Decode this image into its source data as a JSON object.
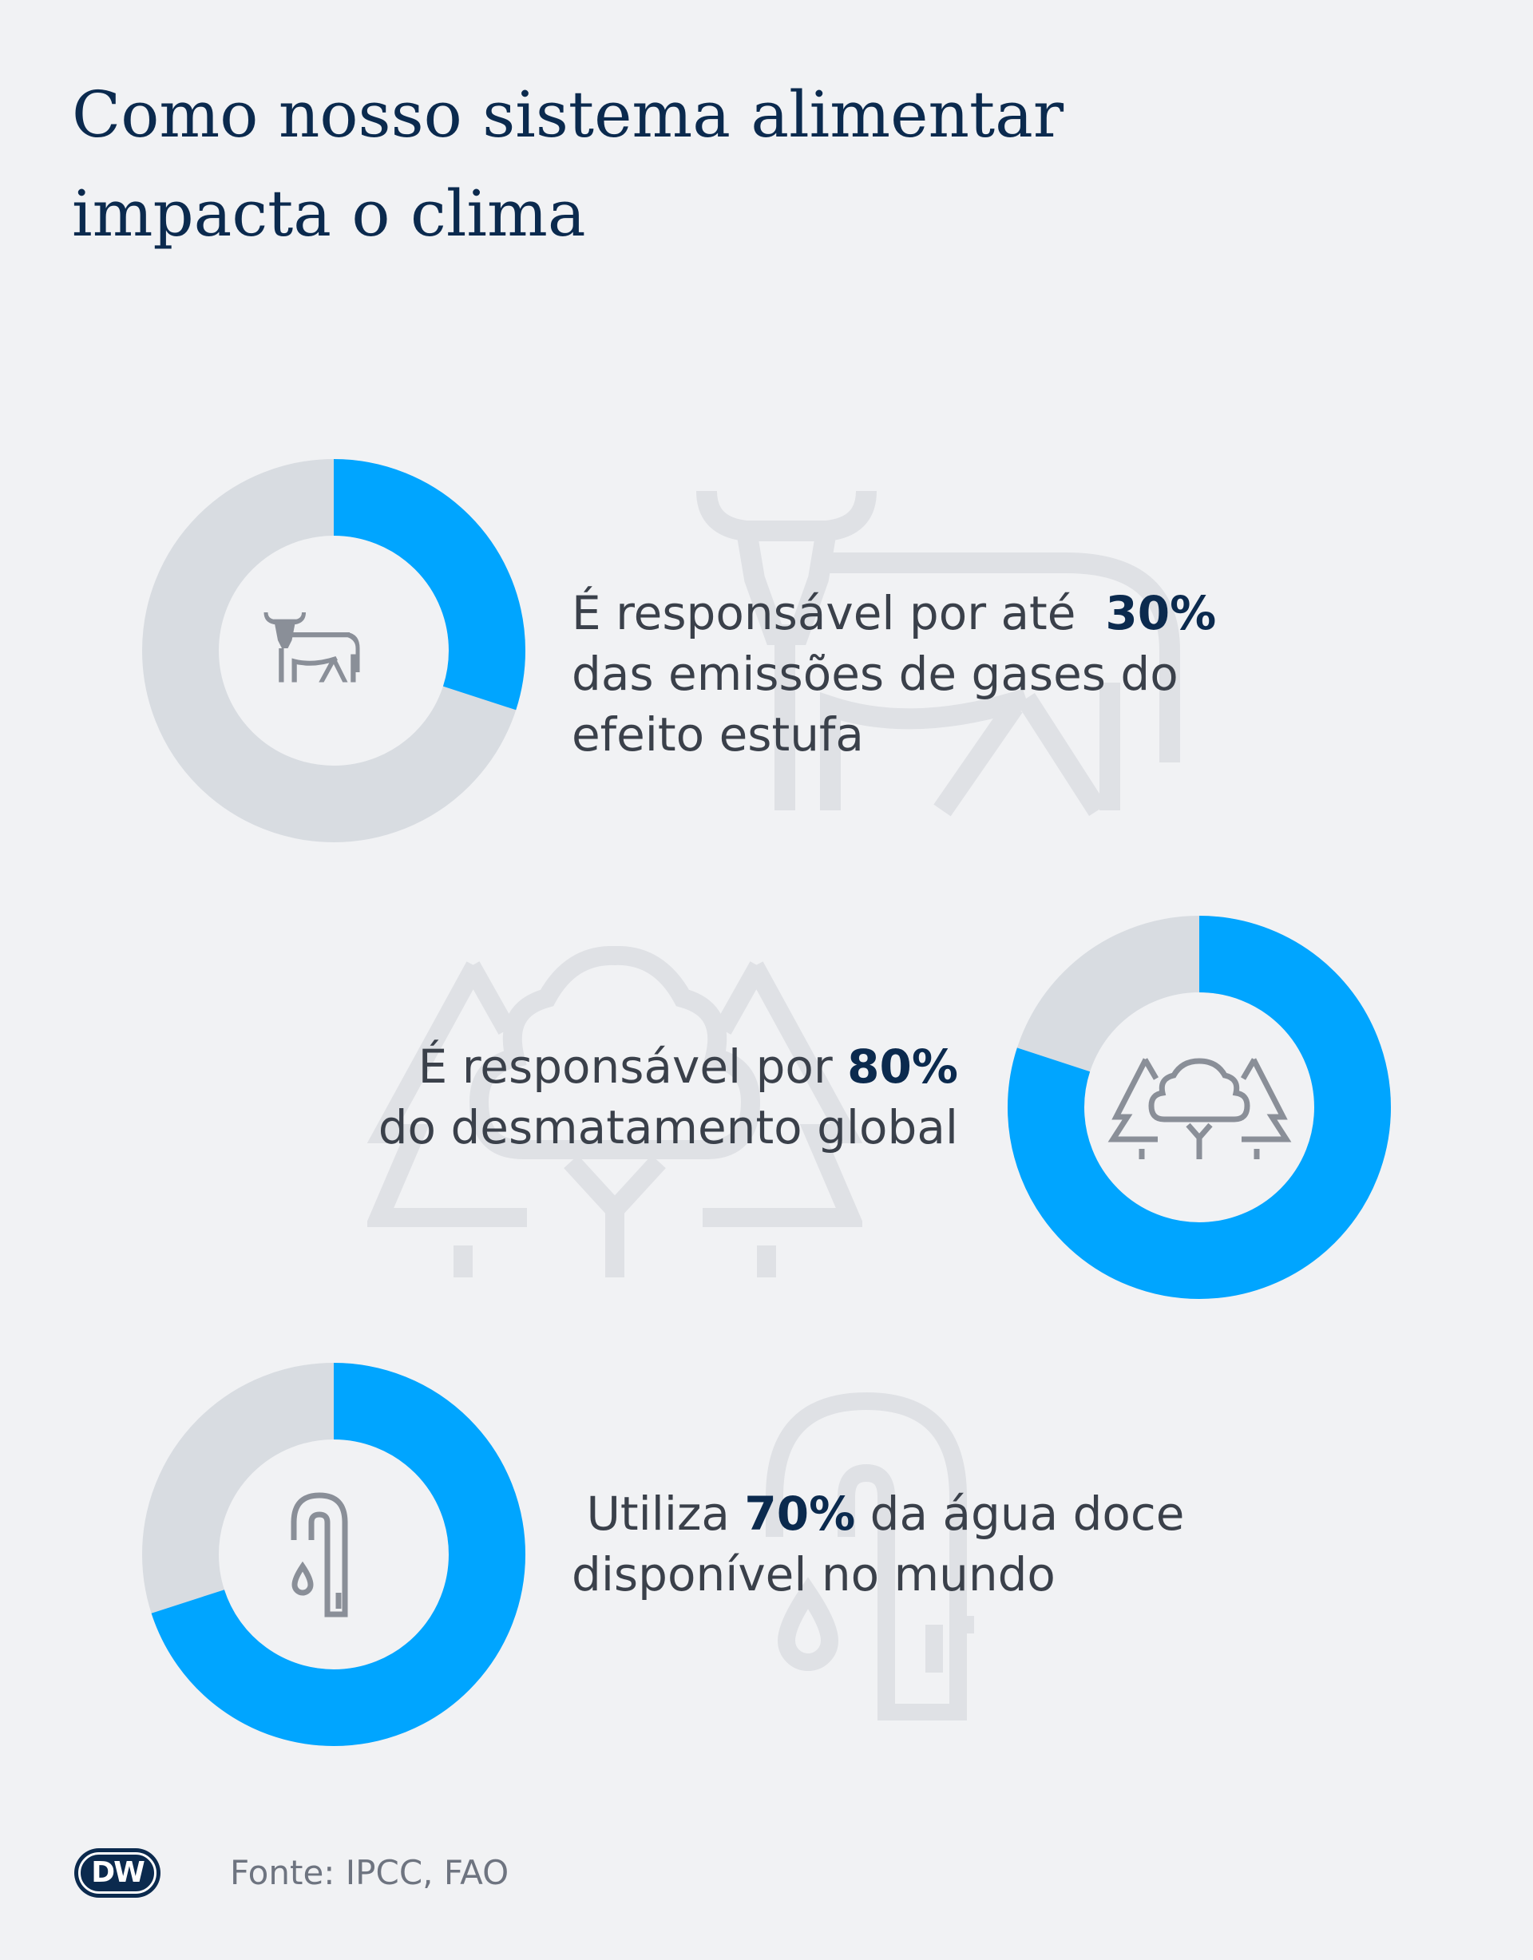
{
  "title": {
    "line1": "Como nosso sistema alimentar",
    "line2": "impacta o clima"
  },
  "colors": {
    "accent": "#00a5ff",
    "track": "#d8dce1",
    "text_dark": "#0b2a4e",
    "icon": "#8a8f98",
    "watermark": "#dfe1e5"
  },
  "chart_data": [
    {
      "type": "pie",
      "variant": "donut",
      "values": [
        30,
        70
      ],
      "highlight": "30%",
      "icon": "cow-icon",
      "text": {
        "line1_pre": "É responsável por até",
        "line1_value": "30%",
        "line2": "das emissões de gases do",
        "line3": "efeito estufa"
      }
    },
    {
      "type": "pie",
      "variant": "donut",
      "values": [
        80,
        20
      ],
      "highlight": "80%",
      "icon": "trees-icon",
      "text": {
        "line1_pre": "É responsável por",
        "line1_value": "80%",
        "line2": "do desmatamento global"
      }
    },
    {
      "type": "pie",
      "variant": "donut",
      "values": [
        70,
        30
      ],
      "highlight": "70%",
      "icon": "water-tap-icon",
      "text": {
        "line1_pre": "Utiliza",
        "line1_value": "70%",
        "line1_post": "da água doce",
        "line2": "disponível no mundo"
      }
    }
  ],
  "footer": {
    "logo": "DW",
    "source": "Fonte: IPCC, FAO"
  }
}
